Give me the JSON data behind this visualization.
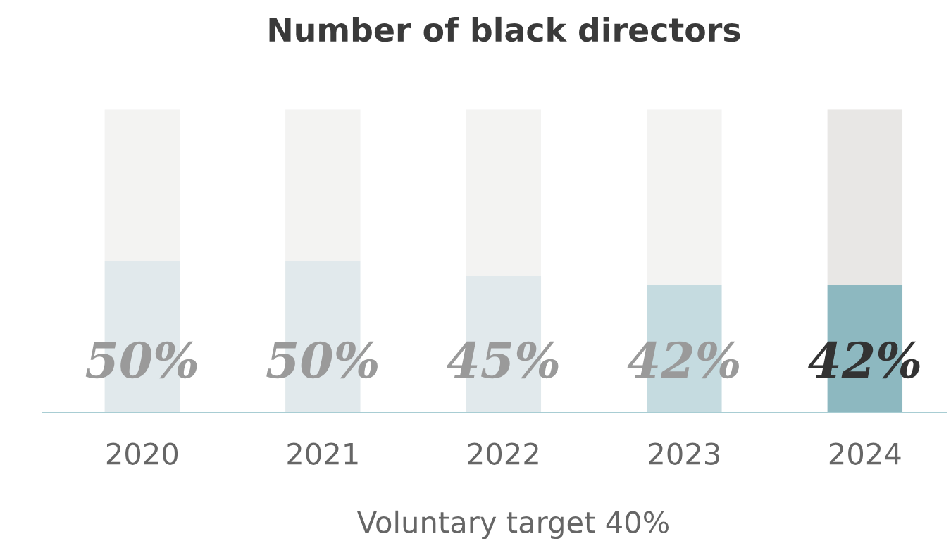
{
  "chart_data": {
    "type": "bar",
    "title": "Number of black directors",
    "stacked": true,
    "tick_labels": "x",
    "grid": false,
    "legend": false,
    "categories": [
      "2020",
      "2021",
      "2022",
      "2023",
      "2024"
    ],
    "series": [
      {
        "colors": [
          "#e1e9ec",
          "#e1e9ec",
          "#e1e9ec",
          "#c5dbe0",
          "#8db8c0"
        ],
        "values": [
          50,
          50,
          45,
          42,
          42
        ],
        "value_labels": [
          "50%",
          "50%",
          "45%",
          "42%",
          "42%"
        ]
      },
      {
        "colors": [
          "#f3f3f2",
          "#f3f3f2",
          "#f3f3f2",
          "#f3f3f2",
          "#e8e7e5"
        ],
        "values": [
          50,
          50,
          55,
          58,
          58
        ]
      }
    ],
    "annotations": [
      "Voluntary target 40%"
    ]
  }
}
